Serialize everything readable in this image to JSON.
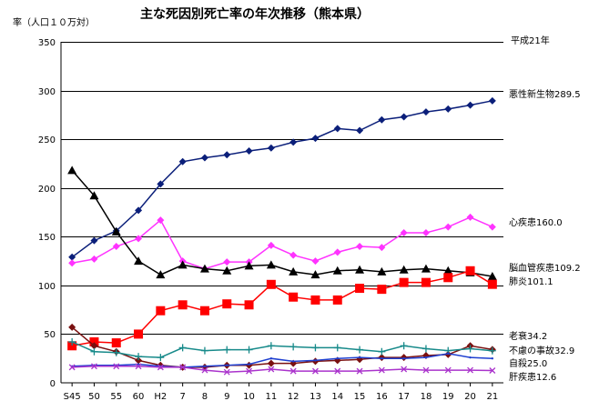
{
  "chart_data": {
    "type": "line",
    "title": "主な死因別死亡率の年次推移（熊本県）",
    "ylabel": "率（人口１０万対）",
    "note": "平成21年",
    "ylim": [
      0,
      350
    ],
    "yticks": [
      0,
      50,
      100,
      150,
      200,
      250,
      300,
      350
    ],
    "grid": true,
    "categories": [
      "S45",
      "50",
      "55",
      "60",
      "H2",
      "7",
      "8",
      "9",
      "10",
      "11",
      "12",
      "13",
      "14",
      "15",
      "16",
      "17",
      "18",
      "19",
      "20",
      "21"
    ],
    "series": [
      {
        "name": "悪性新生物",
        "label": "悪性新生物289.5",
        "color": "#0b1f7a",
        "marker": "diamond",
        "values": [
          129,
          146,
          156,
          177,
          204,
          227,
          231,
          234,
          238,
          241,
          247,
          251,
          261,
          259,
          270,
          273,
          278,
          281,
          285,
          289.5
        ]
      },
      {
        "name": "心疾患",
        "label": "心疾患160.0",
        "color": "#ff33ff",
        "marker": "diamond",
        "values": [
          123,
          127,
          140,
          148,
          167,
          125,
          117,
          124,
          124,
          141,
          131,
          125,
          134,
          140,
          139,
          154,
          154,
          160,
          170,
          160.0
        ]
      },
      {
        "name": "脳血管疾患",
        "label": "脳血管疾患109.2",
        "color": "#000000",
        "marker": "triangle",
        "values": [
          218,
          192,
          155,
          125,
          111,
          121,
          117,
          115,
          120,
          121,
          114,
          111,
          115,
          116,
          114,
          116,
          117,
          115,
          113,
          109.2
        ]
      },
      {
        "name": "肺炎",
        "label": "肺炎101.1",
        "color": "#ff0000",
        "marker": "square",
        "values": [
          38,
          42,
          41,
          50,
          74,
          80,
          74,
          81,
          80,
          101,
          88,
          85,
          85,
          97,
          96,
          103,
          103,
          108,
          115,
          101.1
        ]
      },
      {
        "name": "老衰",
        "label": "老衰34.2",
        "color": "#7a1010",
        "marker": "diamond",
        "values": [
          57,
          38,
          32,
          23,
          18,
          16,
          16,
          18,
          18,
          20,
          20,
          22,
          23,
          24,
          26,
          26,
          28,
          29,
          38,
          34.2
        ]
      },
      {
        "name": "不慮の事故",
        "label": "不慮の事故32.9",
        "color": "#178a8a",
        "marker": "cross",
        "values": [
          42,
          32,
          31,
          27,
          26,
          36,
          33,
          34,
          34,
          38,
          37,
          36,
          36,
          34,
          32,
          38,
          35,
          33,
          35,
          32.9
        ]
      },
      {
        "name": "自殺",
        "label": "自殺25.0",
        "color": "#1e3fd0",
        "marker": "none",
        "values": [
          17,
          18,
          18,
          19,
          17,
          16,
          17,
          18,
          19,
          25,
          22,
          23,
          25,
          26,
          25,
          25,
          26,
          30,
          26,
          25.0
        ]
      },
      {
        "name": "肝疾患",
        "label": "肝疾患12.6",
        "color": "#aa33cc",
        "marker": "x",
        "values": [
          16,
          17,
          17,
          17,
          16,
          16,
          13,
          11,
          12,
          14,
          12,
          12,
          12,
          12,
          13,
          14,
          13,
          13,
          13,
          12.6
        ]
      }
    ]
  }
}
